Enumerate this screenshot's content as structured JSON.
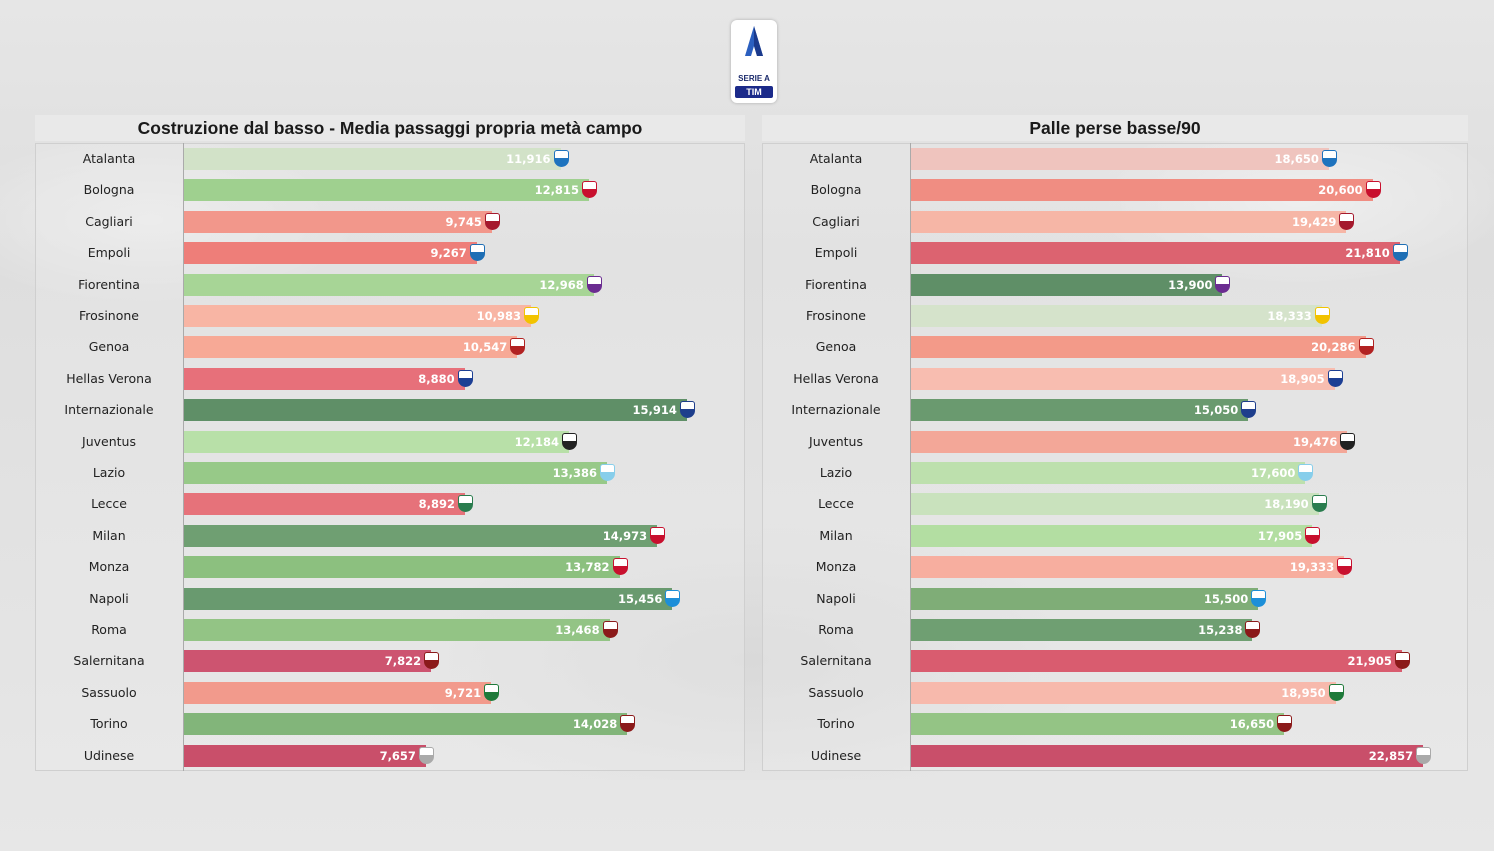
{
  "logo": {
    "text": "SERIE A",
    "sponsor": "TIM"
  },
  "chart_data": [
    {
      "type": "bar",
      "orientation": "horizontal",
      "title": "Costruzione dal basso - Media passaggi propria metà campo",
      "xlim": [
        0,
        17.5
      ],
      "categories": [
        "Atalanta",
        "Bologna",
        "Cagliari",
        "Empoli",
        "Fiorentina",
        "Frosinone",
        "Genoa",
        "Hellas Verona",
        "Internazionale",
        "Juventus",
        "Lazio",
        "Lecce",
        "Milan",
        "Monza",
        "Napoli",
        "Roma",
        "Salernitana",
        "Sassuolo",
        "Torino",
        "Udinese"
      ],
      "values": [
        11.916,
        12.815,
        9.745,
        9.267,
        12.968,
        10.983,
        10.547,
        8.88,
        15.914,
        12.184,
        13.386,
        8.892,
        14.973,
        13.782,
        15.456,
        13.468,
        7.822,
        9.721,
        14.028,
        7.657
      ],
      "labels": [
        "11,916",
        "12,815",
        "9,745",
        "9,267",
        "12,968",
        "10,983",
        "10,547",
        "8,880",
        "15,914",
        "12,184",
        "13,386",
        "8,892",
        "14,973",
        "13,782",
        "15,456",
        "13,468",
        "7,822",
        "9,721",
        "14,028",
        "7,657"
      ],
      "colors": [
        "#d2e2c8",
        "#9fd08f",
        "#f2978b",
        "#ee7e79",
        "#a7d596",
        "#f8b5a4",
        "#f7a996",
        "#e7707a",
        "#5f8f67",
        "#b8e0a8",
        "#97c988",
        "#e6727a",
        "#6f9f72",
        "#8cc07f",
        "#699a6f",
        "#93c485",
        "#cd5470",
        "#f29a8c",
        "#82b57a",
        "#c94f6a"
      ],
      "crest_colors": [
        "#1e73be",
        "#c8102e",
        "#a5192d",
        "#1f6fb5",
        "#6b2c91",
        "#f2c300",
        "#b22222",
        "#1c3f94",
        "#1e3e8c",
        "#222222",
        "#87ceeb",
        "#2a7c4e",
        "#c8102e",
        "#c8102e",
        "#1d8fd8",
        "#8b1a1a",
        "#8b1a1a",
        "#1f7a3a",
        "#8b1a1a",
        "#aaaaaa"
      ]
    },
    {
      "type": "bar",
      "orientation": "horizontal",
      "title": "Palle perse basse/90",
      "xlim": [
        0,
        24.5
      ],
      "categories": [
        "Atalanta",
        "Bologna",
        "Cagliari",
        "Empoli",
        "Fiorentina",
        "Frosinone",
        "Genoa",
        "Hellas Verona",
        "Internazionale",
        "Juventus",
        "Lazio",
        "Lecce",
        "Milan",
        "Monza",
        "Napoli",
        "Roma",
        "Salernitana",
        "Sassuolo",
        "Torino",
        "Udinese"
      ],
      "values": [
        18.65,
        20.6,
        19.429,
        21.81,
        13.9,
        18.333,
        20.286,
        18.905,
        15.05,
        19.476,
        17.6,
        18.19,
        17.905,
        19.333,
        15.5,
        15.238,
        21.905,
        18.95,
        16.65,
        22.857
      ],
      "labels": [
        "18,650",
        "20,600",
        "19,429",
        "21,810",
        "13,900",
        "18,333",
        "20,286",
        "18,905",
        "15,050",
        "19,476",
        "17,600",
        "18,190",
        "17,905",
        "19,333",
        "15,500",
        "15,238",
        "21,905",
        "18,950",
        "16,650",
        "22,857"
      ],
      "colors": [
        "#efc4be",
        "#f08d82",
        "#f6b6a6",
        "#dc6370",
        "#5f8f67",
        "#d5e3cb",
        "#f39a89",
        "#f8bdb0",
        "#6a9a6f",
        "#f3a798",
        "#bde0ad",
        "#c9e2bd",
        "#b3dea2",
        "#f7ae9f",
        "#7fad77",
        "#6f9f72",
        "#d95c6f",
        "#f7b9ac",
        "#94c485",
        "#c94f6a"
      ],
      "crest_colors": [
        "#1e73be",
        "#c8102e",
        "#a5192d",
        "#1f6fb5",
        "#6b2c91",
        "#f2c300",
        "#b22222",
        "#1c3f94",
        "#1e3e8c",
        "#222222",
        "#87ceeb",
        "#2a7c4e",
        "#c8102e",
        "#c8102e",
        "#1d8fd8",
        "#8b1a1a",
        "#8b1a1a",
        "#1f7a3a",
        "#8b1a1a",
        "#aaaaaa"
      ]
    }
  ]
}
